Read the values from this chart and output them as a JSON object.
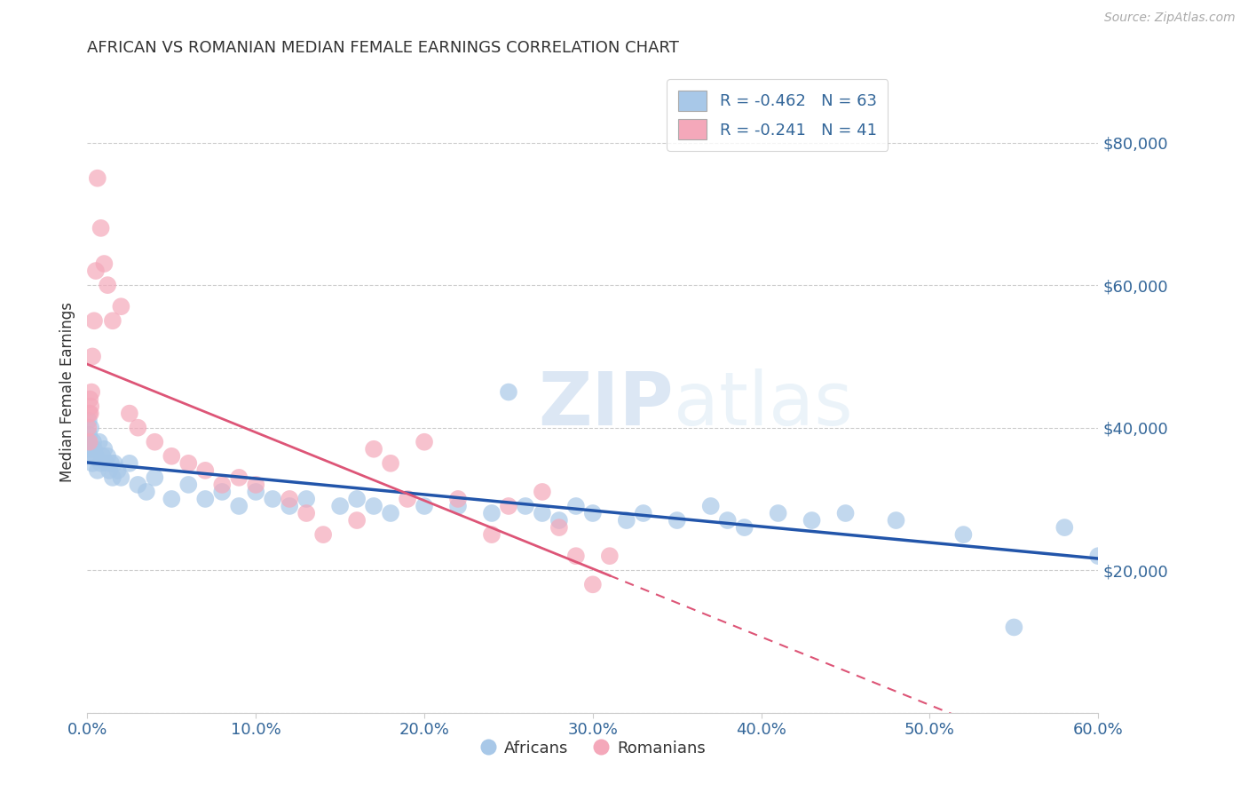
{
  "title": "AFRICAN VS ROMANIAN MEDIAN FEMALE EARNINGS CORRELATION CHART",
  "source_text": "Source: ZipAtlas.com",
  "ylabel": "Median Female Earnings",
  "xlabel_ticks": [
    "0.0%",
    "10.0%",
    "20.0%",
    "30.0%",
    "40.0%",
    "50.0%",
    "60.0%"
  ],
  "xlabel_vals": [
    0.0,
    10.0,
    20.0,
    30.0,
    40.0,
    50.0,
    60.0
  ],
  "ytick_vals": [
    0,
    20000,
    40000,
    60000,
    80000
  ],
  "ytick_labels": [
    "",
    "$20,000",
    "$40,000",
    "$60,000",
    "$80,000"
  ],
  "xlim": [
    0.0,
    60.0
  ],
  "ylim": [
    0,
    90000
  ],
  "watermark_zip": "ZIP",
  "watermark_atlas": "atlas",
  "african_color": "#a8c8e8",
  "romanian_color": "#f4a8ba",
  "african_line_color": "#2255aa",
  "romanian_line_color": "#dd5577",
  "legend_africans": "Africans",
  "legend_romanians": "Romanians",
  "african_R": -0.462,
  "african_N": 63,
  "romanian_R": -0.241,
  "romanian_N": 41,
  "african_x": [
    0.05,
    0.08,
    0.1,
    0.15,
    0.2,
    0.25,
    0.3,
    0.35,
    0.4,
    0.5,
    0.6,
    0.7,
    0.8,
    0.9,
    1.0,
    1.1,
    1.2,
    1.3,
    1.4,
    1.5,
    1.6,
    1.8,
    2.0,
    2.5,
    3.0,
    3.5,
    4.0,
    5.0,
    6.0,
    7.0,
    8.0,
    9.0,
    10.0,
    11.0,
    12.0,
    13.0,
    15.0,
    16.0,
    17.0,
    18.0,
    20.0,
    22.0,
    24.0,
    25.0,
    26.0,
    27.0,
    28.0,
    29.0,
    30.0,
    32.0,
    33.0,
    35.0,
    37.0,
    38.0,
    39.0,
    41.0,
    43.0,
    45.0,
    48.0,
    52.0,
    55.0,
    58.0,
    60.0
  ],
  "african_y": [
    38000,
    41000,
    39000,
    37000,
    40000,
    36000,
    35000,
    38000,
    37000,
    36000,
    34000,
    38000,
    35000,
    36000,
    37000,
    35000,
    36000,
    34000,
    35000,
    33000,
    35000,
    34000,
    33000,
    35000,
    32000,
    31000,
    33000,
    30000,
    32000,
    30000,
    31000,
    29000,
    31000,
    30000,
    29000,
    30000,
    29000,
    30000,
    29000,
    28000,
    29000,
    29000,
    28000,
    45000,
    29000,
    28000,
    27000,
    29000,
    28000,
    27000,
    28000,
    27000,
    29000,
    27000,
    26000,
    28000,
    27000,
    28000,
    27000,
    25000,
    12000,
    26000,
    22000
  ],
  "romanian_x": [
    0.05,
    0.1,
    0.12,
    0.15,
    0.18,
    0.2,
    0.25,
    0.3,
    0.4,
    0.5,
    0.6,
    0.8,
    1.0,
    1.2,
    1.5,
    2.0,
    2.5,
    3.0,
    4.0,
    5.0,
    6.0,
    7.0,
    8.0,
    9.0,
    10.0,
    12.0,
    13.0,
    14.0,
    16.0,
    17.0,
    18.0,
    19.0,
    20.0,
    22.0,
    24.0,
    25.0,
    27.0,
    28.0,
    29.0,
    30.0,
    31.0
  ],
  "romanian_y": [
    40000,
    42000,
    38000,
    44000,
    42000,
    43000,
    45000,
    50000,
    55000,
    62000,
    75000,
    68000,
    63000,
    60000,
    55000,
    57000,
    42000,
    40000,
    38000,
    36000,
    35000,
    34000,
    32000,
    33000,
    32000,
    30000,
    28000,
    25000,
    27000,
    37000,
    35000,
    30000,
    38000,
    30000,
    25000,
    29000,
    31000,
    26000,
    22000,
    18000,
    22000
  ],
  "title_color": "#333333",
  "title_fontsize": 13,
  "axis_label_color": "#336699",
  "tick_label_color": "#336699",
  "grid_color": "#cccccc",
  "background_color": "#ffffff"
}
